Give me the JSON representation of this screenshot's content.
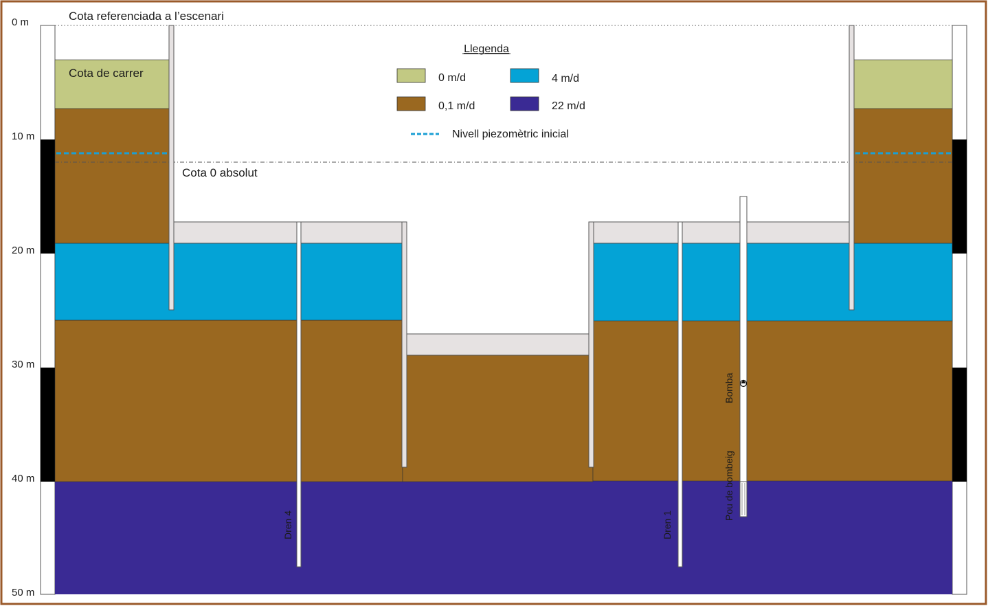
{
  "labels": {
    "top_reference": "Cota referenciada a l’escenari",
    "street_level": "Cota de carrer",
    "absolute_zero": "Cota 0 absolut",
    "pump": "Bomba",
    "pumping_well": "Pou de bombeig",
    "drain_4": "Dren 4",
    "drain_1": "Dren 1"
  },
  "depth_scale": {
    "ticks": [
      "0 m",
      "10 m",
      "20 m",
      "30 m",
      "40 m",
      "50 m"
    ]
  },
  "legend": {
    "title": "Llegenda",
    "items": [
      {
        "label": "0 m/d",
        "color": "#c2c983"
      },
      {
        "label": "4 m/d",
        "color": "#04a3d6"
      },
      {
        "label": "0,1 m/d",
        "color": "#9a6820"
      },
      {
        "label": "22 m/d",
        "color": "#3a2a94"
      }
    ],
    "line_item": {
      "label": "Nivell piezomètric inicial",
      "color": "#1b9fd4"
    }
  },
  "colors": {
    "frame": "#9a5a2a",
    "wall": "#e6e2e2",
    "permeability_0": "#c2c983",
    "permeability_0_1": "#9a6820",
    "permeability_4": "#04a3d6",
    "permeability_22": "#3a2a94",
    "piezometric": "#1b9fd4"
  }
}
